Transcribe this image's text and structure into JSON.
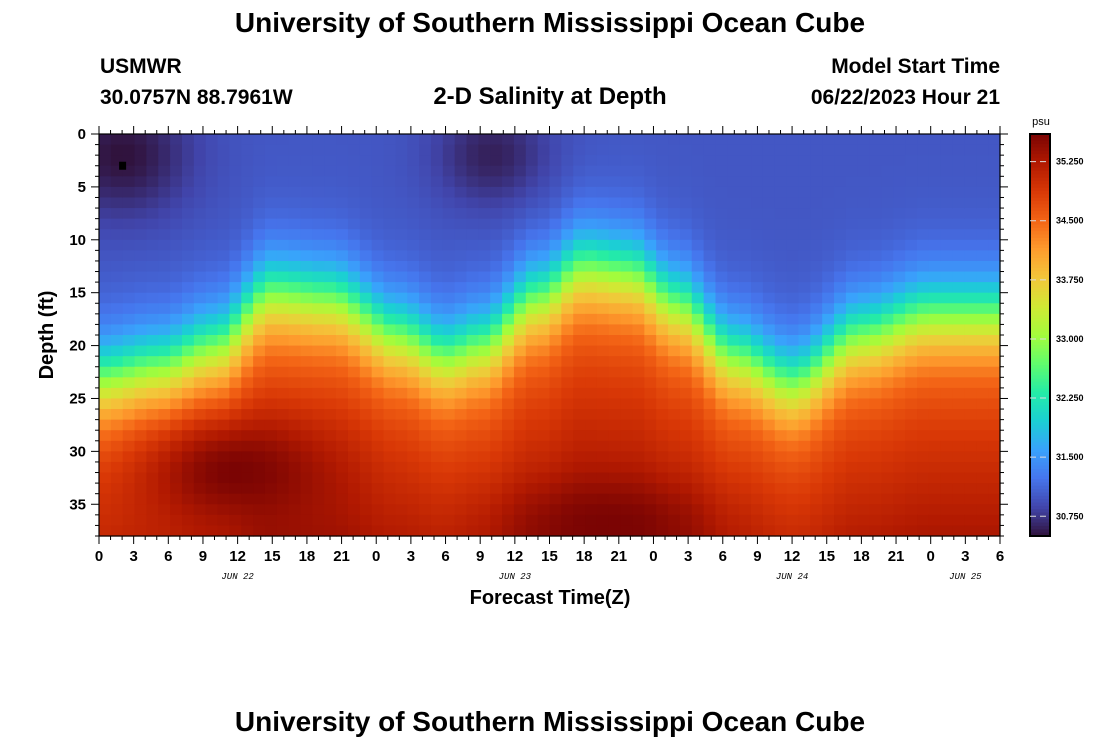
{
  "page": {
    "title": "University of Southern Mississippi Ocean Cube",
    "footer_title": "University of Southern Mississippi Ocean Cube"
  },
  "header": {
    "station": "USMWR",
    "coords": "30.0757N  88.7961W",
    "plot_title": "2-D Salinity at Depth",
    "model_label": "Model Start Time",
    "model_time": "06/22/2023 Hour 21"
  },
  "chart_data": {
    "type": "heatmap",
    "title": "2-D Salinity at Depth",
    "xlabel": "Forecast Time(Z)",
    "ylabel": "Depth (ft)",
    "x_range_hours": [
      0,
      78
    ],
    "ylim": [
      0,
      38
    ],
    "x_tick_labels": [
      "0",
      "3",
      "6",
      "9",
      "12",
      "15",
      "18",
      "21",
      "0",
      "3",
      "6",
      "9",
      "12",
      "15",
      "18",
      "21",
      "0",
      "3",
      "6",
      "9",
      "12",
      "15",
      "18",
      "21",
      "0",
      "3",
      "6"
    ],
    "date_labels": [
      {
        "text": "JUN 22",
        "hour": 12
      },
      {
        "text": "JUN 23",
        "hour": 36
      },
      {
        "text": "JUN 24",
        "hour": 60
      },
      {
        "text": "JUN 25",
        "hour": 75
      }
    ],
    "y_ticks": [
      0,
      5,
      10,
      15,
      20,
      25,
      30,
      35
    ],
    "colorbar": {
      "unit": "psu",
      "min": 30.5,
      "max": 35.6,
      "ticks": [
        "30.750",
        "31.500",
        "32.250",
        "33.000",
        "33.750",
        "34.500",
        "35.250"
      ],
      "tick_values": [
        30.75,
        31.5,
        32.25,
        33.0,
        33.75,
        34.5,
        35.25
      ]
    },
    "halocline_depth_ft": [
      {
        "hour": 0,
        "depth": 23
      },
      {
        "hour": 5,
        "depth": 22
      },
      {
        "hour": 10,
        "depth": 20
      },
      {
        "hour": 15,
        "depth": 15
      },
      {
        "hour": 20,
        "depth": 15.5
      },
      {
        "hour": 26,
        "depth": 19
      },
      {
        "hour": 30,
        "depth": 21
      },
      {
        "hour": 33,
        "depth": 20
      },
      {
        "hour": 38,
        "depth": 15.5
      },
      {
        "hour": 42,
        "depth": 12.5
      },
      {
        "hour": 46,
        "depth": 13
      },
      {
        "hour": 50,
        "depth": 16
      },
      {
        "hour": 55,
        "depth": 21
      },
      {
        "hour": 60,
        "depth": 23.5
      },
      {
        "hour": 66,
        "depth": 19
      },
      {
        "hour": 72,
        "depth": 17
      },
      {
        "hour": 78,
        "depth": 17
      }
    ],
    "surface_salinity": 31.0,
    "fresh_cores": [
      {
        "hour": 2,
        "depth": 2,
        "radius_h": 6,
        "radius_d": 6,
        "salinity": 30.5
      },
      {
        "hour": 34,
        "depth": 2,
        "radius_h": 5,
        "radius_d": 5,
        "salinity": 30.6
      },
      {
        "hour": 63,
        "depth": 4,
        "radius_h": 4,
        "radius_d": 4,
        "salinity": 31.0
      }
    ],
    "bottom_cores": [
      {
        "hour": 12,
        "depth": 32,
        "radius_h": 8,
        "radius_d": 5,
        "salinity": 35.6
      },
      {
        "hour": 44,
        "depth": 37,
        "radius_h": 8,
        "radius_d": 4,
        "salinity": 35.6
      }
    ],
    "marker": {
      "hour": 2,
      "depth": 3
    },
    "colors": {
      "palette": [
        "#30123b",
        "#4145ab",
        "#4675ed",
        "#39a2fc",
        "#1bcfd4",
        "#24eca6",
        "#61fc6c",
        "#a4fc3b",
        "#d1e834",
        "#f3c63a",
        "#fe9b2d",
        "#f36315",
        "#d93806",
        "#b11901",
        "#7a0403"
      ]
    }
  }
}
